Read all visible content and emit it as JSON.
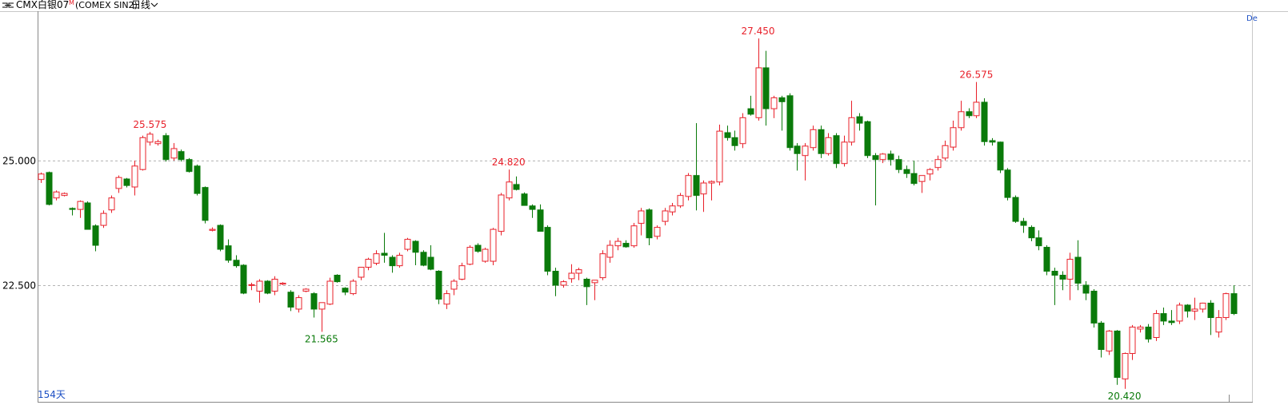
{
  "header": {
    "symbol": "CMX白银07",
    "marker": "M",
    "exchange": "(COMEX SIN2)",
    "period": "日线"
  },
  "corner": "De",
  "chart_data": {
    "type": "candlestick",
    "up_color": "#e8202a",
    "down_color": "#0a7a0a",
    "grid": true,
    "ylim": [
      20.16,
      27.98
    ],
    "yticks": [
      {
        "value": 22.5,
        "label": "22.500"
      },
      {
        "value": 25,
        "label": "25.000"
      }
    ],
    "span_label": "154天",
    "annotations": [
      {
        "value": 25.575,
        "label": "25.575"
      },
      {
        "value": 21.565,
        "label": "21.565"
      },
      {
        "value": 24.82,
        "label": "24.820"
      },
      {
        "value": 27.45,
        "label": "27.450"
      },
      {
        "value": 26.575,
        "label": "26.575"
      },
      {
        "value": 20.42,
        "label": "20.420"
      }
    ],
    "ohlc": [
      [
        24.62,
        24.76,
        24.55,
        24.73
      ],
      [
        24.76,
        24.78,
        24.1,
        24.12
      ],
      [
        24.25,
        24.4,
        24.2,
        24.37
      ],
      [
        24.3,
        24.36,
        24.28,
        24.34
      ],
      [
        24.04,
        24.06,
        23.9,
        24.02
      ],
      [
        24.02,
        24.2,
        23.85,
        24.18
      ],
      [
        24.15,
        24.18,
        23.65,
        23.62
      ],
      [
        23.69,
        23.72,
        23.18,
        23.3
      ],
      [
        23.7,
        24.0,
        23.65,
        23.94
      ],
      [
        24.01,
        24.3,
        23.95,
        24.25
      ],
      [
        24.44,
        24.7,
        24.35,
        24.66
      ],
      [
        24.63,
        24.65,
        24.46,
        24.5
      ],
      [
        24.47,
        25.0,
        24.3,
        24.89
      ],
      [
        24.82,
        25.5,
        24.8,
        25.46
      ],
      [
        25.37,
        25.575,
        25.3,
        25.53
      ],
      [
        25.34,
        25.42,
        25.3,
        25.38
      ],
      [
        25.5,
        25.55,
        24.98,
        25.02
      ],
      [
        25.05,
        25.35,
        25.0,
        25.24
      ],
      [
        25.18,
        25.22,
        24.98,
        25.02
      ],
      [
        25.02,
        25.05,
        24.76,
        24.78
      ],
      [
        24.89,
        24.92,
        24.3,
        24.34
      ],
      [
        24.46,
        24.48,
        23.74,
        23.8
      ],
      [
        23.6,
        23.66,
        23.58,
        23.62
      ],
      [
        23.7,
        23.72,
        23.18,
        23.22
      ],
      [
        23.29,
        23.42,
        22.95,
        23.0
      ],
      [
        23.0,
        23.1,
        22.85,
        22.89
      ],
      [
        22.9,
        22.92,
        22.32,
        22.34
      ],
      [
        22.5,
        22.55,
        22.4,
        22.51
      ],
      [
        22.38,
        22.62,
        22.15,
        22.58
      ],
      [
        22.58,
        22.6,
        22.32,
        22.34
      ],
      [
        22.38,
        22.68,
        22.3,
        22.62
      ],
      [
        22.52,
        22.56,
        22.5,
        22.54
      ],
      [
        22.36,
        22.4,
        21.98,
        22.06
      ],
      [
        22.02,
        22.3,
        21.95,
        22.25
      ],
      [
        22.38,
        22.44,
        22.36,
        22.42
      ],
      [
        22.33,
        22.36,
        21.85,
        22.02
      ],
      [
        22.02,
        22.12,
        21.565,
        22.15
      ],
      [
        22.12,
        22.65,
        22.1,
        22.58
      ],
      [
        22.7,
        22.72,
        22.55,
        22.57
      ],
      [
        22.44,
        22.46,
        22.3,
        22.36
      ],
      [
        22.33,
        22.62,
        22.3,
        22.58
      ],
      [
        22.66,
        22.8,
        22.6,
        22.86
      ],
      [
        22.86,
        23.05,
        22.8,
        23.02
      ],
      [
        22.94,
        23.2,
        22.9,
        23.13
      ],
      [
        23.14,
        23.55,
        22.95,
        23.1
      ],
      [
        23.06,
        23.1,
        22.75,
        22.89
      ],
      [
        22.89,
        23.15,
        22.85,
        23.1
      ],
      [
        23.22,
        23.45,
        23.18,
        23.42
      ],
      [
        23.38,
        23.4,
        22.9,
        23.16
      ],
      [
        23.16,
        23.2,
        22.88,
        22.9
      ],
      [
        23.06,
        23.3,
        22.8,
        22.82
      ],
      [
        22.78,
        22.8,
        22.12,
        22.22
      ],
      [
        22.12,
        22.4,
        22.02,
        22.33
      ],
      [
        22.42,
        22.62,
        22.3,
        22.58
      ],
      [
        22.62,
        22.95,
        22.6,
        22.89
      ],
      [
        22.92,
        23.3,
        22.9,
        23.26
      ],
      [
        23.3,
        23.34,
        23.15,
        23.18
      ],
      [
        22.98,
        23.25,
        22.95,
        23.22
      ],
      [
        22.98,
        23.65,
        22.9,
        23.62
      ],
      [
        23.58,
        24.35,
        23.5,
        24.31
      ],
      [
        24.25,
        24.82,
        24.2,
        24.57
      ],
      [
        24.52,
        24.68,
        24.4,
        24.42
      ],
      [
        24.33,
        24.36,
        24.1,
        24.1
      ],
      [
        24.09,
        24.12,
        23.85,
        24.02
      ],
      [
        24.01,
        24.12,
        23.58,
        23.58
      ],
      [
        23.66,
        23.7,
        22.7,
        22.78
      ],
      [
        22.78,
        22.85,
        22.28,
        22.5
      ],
      [
        22.5,
        22.6,
        22.45,
        22.57
      ],
      [
        22.63,
        22.92,
        22.55,
        22.74
      ],
      [
        22.74,
        22.85,
        22.6,
        22.81
      ],
      [
        22.62,
        22.65,
        22.1,
        22.47
      ],
      [
        22.55,
        22.6,
        22.2,
        22.6
      ],
      [
        22.65,
        23.2,
        22.6,
        23.13
      ],
      [
        23.06,
        23.4,
        22.95,
        23.3
      ],
      [
        23.29,
        23.45,
        23.2,
        23.38
      ],
      [
        23.34,
        23.4,
        23.25,
        23.27
      ],
      [
        23.29,
        23.75,
        23.25,
        23.69
      ],
      [
        23.74,
        24.05,
        23.5,
        23.99
      ],
      [
        24.01,
        24.04,
        23.3,
        23.45
      ],
      [
        23.48,
        23.7,
        23.42,
        23.66
      ],
      [
        23.78,
        24.05,
        23.7,
        23.99
      ],
      [
        23.97,
        24.15,
        23.9,
        24.09
      ],
      [
        24.09,
        24.35,
        24.05,
        24.3
      ],
      [
        24.28,
        24.75,
        24.2,
        24.7
      ],
      [
        24.7,
        25.75,
        24.0,
        24.3
      ],
      [
        24.33,
        24.6,
        23.97,
        24.55
      ],
      [
        24.55,
        24.6,
        24.2,
        24.58
      ],
      [
        24.57,
        25.72,
        24.5,
        25.59
      ],
      [
        25.56,
        25.7,
        25.4,
        25.46
      ],
      [
        25.46,
        25.6,
        25.2,
        25.3
      ],
      [
        25.34,
        25.95,
        25.25,
        25.86
      ],
      [
        26.04,
        26.3,
        25.9,
        25.93
      ],
      [
        25.86,
        27.45,
        25.8,
        26.86
      ],
      [
        26.86,
        27.2,
        25.7,
        26.04
      ],
      [
        26.04,
        26.3,
        25.85,
        26.26
      ],
      [
        26.26,
        26.3,
        25.6,
        26.18
      ],
      [
        26.3,
        26.35,
        25.2,
        25.26
      ],
      [
        25.29,
        25.35,
        24.8,
        25.14
      ],
      [
        25.1,
        25.35,
        24.6,
        25.29
      ],
      [
        25.26,
        25.7,
        25.2,
        25.62
      ],
      [
        25.62,
        25.7,
        25.05,
        25.14
      ],
      [
        25.14,
        25.55,
        25.1,
        25.46
      ],
      [
        25.5,
        25.55,
        24.85,
        24.94
      ],
      [
        24.94,
        25.5,
        24.88,
        25.37
      ],
      [
        25.37,
        26.2,
        25.3,
        25.86
      ],
      [
        25.88,
        25.95,
        25.6,
        25.75
      ],
      [
        25.78,
        25.8,
        25.05,
        25.1
      ],
      [
        25.1,
        25.15,
        24.1,
        25.02
      ],
      [
        25.02,
        25.15,
        24.95,
        25.13
      ],
      [
        25.13,
        25.2,
        24.9,
        25.02
      ],
      [
        25.02,
        25.1,
        24.75,
        24.82
      ],
      [
        24.82,
        24.9,
        24.65,
        24.74
      ],
      [
        24.74,
        25.0,
        24.5,
        24.54
      ],
      [
        24.58,
        24.7,
        24.35,
        24.7
      ],
      [
        24.73,
        24.85,
        24.6,
        24.82
      ],
      [
        24.86,
        25.1,
        24.8,
        25.02
      ],
      [
        25.05,
        25.4,
        25.0,
        25.3
      ],
      [
        25.27,
        25.8,
        25.2,
        25.66
      ],
      [
        25.66,
        26.2,
        25.6,
        25.98
      ],
      [
        25.98,
        26.05,
        25.85,
        25.9
      ],
      [
        25.9,
        26.575,
        25.85,
        26.17
      ],
      [
        26.17,
        26.25,
        25.3,
        25.38
      ],
      [
        25.4,
        25.45,
        25.3,
        25.37
      ],
      [
        25.37,
        25.38,
        24.75,
        24.81
      ],
      [
        24.81,
        24.85,
        24.2,
        24.26
      ],
      [
        24.26,
        24.3,
        23.75,
        23.78
      ],
      [
        23.78,
        23.85,
        23.55,
        23.7
      ],
      [
        23.66,
        23.7,
        23.38,
        23.45
      ],
      [
        23.45,
        23.6,
        23.2,
        23.29
      ],
      [
        23.26,
        23.3,
        22.7,
        22.78
      ],
      [
        22.78,
        22.85,
        22.1,
        22.7
      ],
      [
        22.7,
        22.78,
        22.4,
        22.62
      ],
      [
        22.62,
        23.15,
        22.2,
        23.02
      ],
      [
        23.06,
        23.4,
        22.4,
        22.54
      ],
      [
        22.5,
        22.58,
        22.2,
        22.34
      ],
      [
        22.38,
        22.42,
        21.65,
        21.74
      ],
      [
        21.74,
        21.78,
        21.05,
        21.21
      ],
      [
        21.18,
        21.6,
        21.1,
        21.58
      ],
      [
        21.58,
        21.6,
        20.5,
        20.65
      ],
      [
        20.62,
        21.15,
        20.42,
        21.13
      ],
      [
        21.13,
        21.7,
        21.0,
        21.66
      ],
      [
        21.62,
        21.7,
        21.55,
        21.66
      ],
      [
        21.66,
        21.72,
        21.35,
        21.42
      ],
      [
        21.45,
        22.0,
        21.38,
        21.93
      ],
      [
        21.93,
        22.05,
        21.7,
        21.78
      ],
      [
        21.78,
        22.0,
        21.7,
        21.75
      ],
      [
        21.78,
        22.15,
        21.72,
        22.1
      ],
      [
        22.1,
        22.12,
        21.85,
        21.98
      ],
      [
        21.98,
        22.25,
        21.8,
        22.02
      ],
      [
        22.02,
        22.15,
        21.95,
        22.14
      ],
      [
        22.14,
        22.2,
        21.5,
        21.85
      ],
      [
        21.56,
        22.0,
        21.45,
        21.85
      ],
      [
        21.85,
        22.35,
        21.8,
        22.33
      ],
      [
        22.33,
        22.5,
        21.9,
        21.93
      ]
    ]
  }
}
